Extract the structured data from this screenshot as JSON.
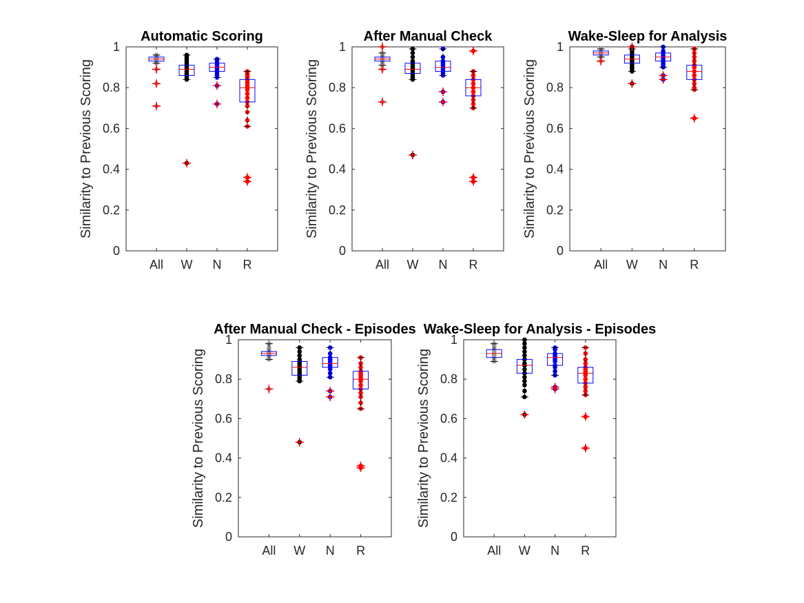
{
  "figure": {
    "ylabel": "Similarity to Previous Scoring",
    "colors": {
      "All": "#999999",
      "W": "#000000",
      "N": "#0000ff",
      "R": "#ff0000",
      "box": "#0000ff",
      "median": "#ff0000",
      "outlier": "#ff0000"
    }
  },
  "chart_data": [
    {
      "type": "box",
      "title": "Automatic Scoring",
      "ylabel": "Similarity to Previous Scoring",
      "categories": [
        "All",
        "W",
        "N",
        "R"
      ],
      "ylim": [
        0,
        1
      ],
      "yticks": [
        0,
        0.2,
        0.4,
        0.6,
        0.8,
        1
      ],
      "yticklabels": [
        "0",
        "0.2",
        "0.4",
        "0.6",
        "0.8",
        "1"
      ],
      "boxes": [
        {
          "q1": 0.93,
          "median": 0.94,
          "q3": 0.95,
          "whisker_low": 0.92,
          "whisker_high": 0.96,
          "outliers": [
            0.89,
            0.82,
            0.71
          ],
          "points": [
            0.92,
            0.93,
            0.935,
            0.94,
            0.945,
            0.95,
            0.955,
            0.96,
            0.89,
            0.82,
            0.71
          ]
        },
        {
          "q1": 0.86,
          "median": 0.89,
          "q3": 0.91,
          "whisker_low": 0.84,
          "whisker_high": 0.96,
          "outliers": [
            0.43
          ],
          "points": [
            0.84,
            0.85,
            0.86,
            0.87,
            0.88,
            0.89,
            0.9,
            0.91,
            0.92,
            0.93,
            0.94,
            0.95,
            0.96,
            0.43
          ]
        },
        {
          "q1": 0.88,
          "median": 0.9,
          "q3": 0.92,
          "whisker_low": 0.85,
          "whisker_high": 0.94,
          "outliers": [
            0.81,
            0.72
          ],
          "points": [
            0.85,
            0.86,
            0.87,
            0.88,
            0.89,
            0.9,
            0.91,
            0.92,
            0.93,
            0.94,
            0.81,
            0.72
          ]
        },
        {
          "q1": 0.73,
          "median": 0.8,
          "q3": 0.84,
          "whisker_low": 0.61,
          "whisker_high": 0.88,
          "outliers": [
            0.36,
            0.34
          ],
          "points": [
            0.61,
            0.64,
            0.68,
            0.71,
            0.73,
            0.75,
            0.77,
            0.79,
            0.8,
            0.81,
            0.82,
            0.83,
            0.84,
            0.85,
            0.86,
            0.87,
            0.88,
            0.36,
            0.34
          ]
        }
      ]
    },
    {
      "type": "box",
      "title": "After Manual Check",
      "ylabel": "Similarity to Previous Scoring",
      "categories": [
        "All",
        "W",
        "N",
        "R"
      ],
      "ylim": [
        0,
        1
      ],
      "yticks": [
        0,
        0.2,
        0.4,
        0.6,
        0.8,
        1
      ],
      "yticklabels": [
        "0",
        "0.2",
        "0.4",
        "0.6",
        "0.8",
        "1"
      ],
      "boxes": [
        {
          "q1": 0.93,
          "median": 0.94,
          "q3": 0.95,
          "whisker_low": 0.91,
          "whisker_high": 0.97,
          "outliers": [
            1.0,
            0.89,
            0.73
          ],
          "points": [
            0.91,
            0.92,
            0.93,
            0.94,
            0.95,
            0.96,
            0.97,
            1.0,
            0.89,
            0.73
          ]
        },
        {
          "q1": 0.87,
          "median": 0.89,
          "q3": 0.92,
          "whisker_low": 0.84,
          "whisker_high": 0.99,
          "outliers": [
            0.47
          ],
          "points": [
            0.84,
            0.85,
            0.86,
            0.87,
            0.88,
            0.89,
            0.9,
            0.91,
            0.92,
            0.93,
            0.95,
            0.97,
            0.99,
            0.47
          ]
        },
        {
          "q1": 0.88,
          "median": 0.9,
          "q3": 0.93,
          "whisker_low": 0.86,
          "whisker_high": 0.99,
          "outliers": [
            0.78,
            0.73
          ],
          "points": [
            0.86,
            0.87,
            0.88,
            0.89,
            0.9,
            0.91,
            0.92,
            0.93,
            0.95,
            0.99,
            0.78,
            0.73
          ]
        },
        {
          "q1": 0.76,
          "median": 0.8,
          "q3": 0.84,
          "whisker_low": 0.7,
          "whisker_high": 0.88,
          "outliers": [
            0.98,
            0.36,
            0.34
          ],
          "points": [
            0.7,
            0.72,
            0.74,
            0.76,
            0.78,
            0.8,
            0.82,
            0.84,
            0.86,
            0.88,
            0.98,
            0.36,
            0.34
          ]
        }
      ]
    },
    {
      "type": "box",
      "title": "Wake-Sleep for Analysis",
      "ylabel": "Similarity to Previous Scoring",
      "categories": [
        "All",
        "W",
        "N",
        "R"
      ],
      "ylim": [
        0,
        1
      ],
      "yticks": [
        0,
        0.2,
        0.4,
        0.6,
        0.8,
        1
      ],
      "yticklabels": [
        "0",
        "0.2",
        "0.4",
        "0.6",
        "0.8",
        "1"
      ],
      "boxes": [
        {
          "q1": 0.96,
          "median": 0.97,
          "q3": 0.98,
          "whisker_low": 0.95,
          "whisker_high": 0.99,
          "outliers": [
            0.93
          ],
          "points": [
            0.95,
            0.96,
            0.965,
            0.97,
            0.975,
            0.98,
            0.99,
            0.93
          ]
        },
        {
          "q1": 0.92,
          "median": 0.94,
          "q3": 0.96,
          "whisker_low": 0.88,
          "whisker_high": 0.99,
          "outliers": [
            0.82,
            1.0
          ],
          "points": [
            0.88,
            0.89,
            0.9,
            0.91,
            0.92,
            0.93,
            0.94,
            0.95,
            0.96,
            0.97,
            0.98,
            0.99,
            0.82,
            1.0
          ]
        },
        {
          "q1": 0.93,
          "median": 0.95,
          "q3": 0.97,
          "whisker_low": 0.9,
          "whisker_high": 1.0,
          "outliers": [
            0.86,
            0.84
          ],
          "points": [
            0.9,
            0.91,
            0.92,
            0.93,
            0.94,
            0.95,
            0.96,
            0.97,
            0.98,
            1.0,
            0.86,
            0.84
          ]
        },
        {
          "q1": 0.84,
          "median": 0.88,
          "q3": 0.91,
          "whisker_low": 0.79,
          "whisker_high": 0.99,
          "outliers": [
            0.65
          ],
          "points": [
            0.79,
            0.8,
            0.82,
            0.84,
            0.86,
            0.88,
            0.9,
            0.91,
            0.93,
            0.95,
            0.97,
            0.99,
            0.65
          ]
        }
      ]
    },
    {
      "type": "box",
      "title": "After Manual Check - Episodes",
      "ylabel": "Similarity to Previous Scoring",
      "categories": [
        "All",
        "W",
        "N",
        "R"
      ],
      "ylim": [
        0,
        1
      ],
      "yticks": [
        0,
        0.2,
        0.4,
        0.6,
        0.8,
        1
      ],
      "yticklabels": [
        "0",
        "0.2",
        "0.4",
        "0.6",
        "0.8",
        "1"
      ],
      "boxes": [
        {
          "q1": 0.92,
          "median": 0.93,
          "q3": 0.94,
          "whisker_low": 0.9,
          "whisker_high": 0.98,
          "outliers": [
            0.75
          ],
          "points": [
            0.9,
            0.91,
            0.92,
            0.93,
            0.94,
            0.95,
            0.96,
            0.98,
            0.75
          ]
        },
        {
          "q1": 0.82,
          "median": 0.86,
          "q3": 0.89,
          "whisker_low": 0.79,
          "whisker_high": 0.96,
          "outliers": [
            0.48
          ],
          "points": [
            0.79,
            0.8,
            0.81,
            0.82,
            0.83,
            0.84,
            0.85,
            0.86,
            0.87,
            0.88,
            0.89,
            0.9,
            0.92,
            0.94,
            0.96,
            0.48
          ]
        },
        {
          "q1": 0.86,
          "median": 0.88,
          "q3": 0.91,
          "whisker_low": 0.81,
          "whisker_high": 0.96,
          "outliers": [
            0.74,
            0.71
          ],
          "points": [
            0.81,
            0.83,
            0.85,
            0.86,
            0.87,
            0.88,
            0.89,
            0.9,
            0.91,
            0.93,
            0.96,
            0.74,
            0.71
          ]
        },
        {
          "q1": 0.75,
          "median": 0.8,
          "q3": 0.84,
          "whisker_low": 0.65,
          "whisker_high": 0.91,
          "outliers": [
            0.36,
            0.35
          ],
          "points": [
            0.65,
            0.68,
            0.71,
            0.73,
            0.75,
            0.77,
            0.79,
            0.8,
            0.81,
            0.82,
            0.83,
            0.84,
            0.86,
            0.88,
            0.91,
            0.36,
            0.35
          ]
        }
      ]
    },
    {
      "type": "box",
      "title": "Wake-Sleep for Analysis - Episodes",
      "ylabel": "Similarity to Previous Scoring",
      "categories": [
        "All",
        "W",
        "N",
        "R"
      ],
      "ylim": [
        0,
        1
      ],
      "yticks": [
        0,
        0.2,
        0.4,
        0.6,
        0.8,
        1
      ],
      "yticklabels": [
        "0",
        "0.2",
        "0.4",
        "0.6",
        "0.8",
        "1"
      ],
      "boxes": [
        {
          "q1": 0.91,
          "median": 0.93,
          "q3": 0.95,
          "whisker_low": 0.89,
          "whisker_high": 0.98,
          "outliers": [],
          "points": [
            0.89,
            0.9,
            0.91,
            0.92,
            0.93,
            0.94,
            0.95,
            0.96,
            0.97,
            0.98
          ]
        },
        {
          "q1": 0.83,
          "median": 0.87,
          "q3": 0.9,
          "whisker_low": 0.71,
          "whisker_high": 1.0,
          "outliers": [
            0.62
          ],
          "points": [
            0.71,
            0.74,
            0.77,
            0.79,
            0.81,
            0.83,
            0.85,
            0.87,
            0.88,
            0.9,
            0.92,
            0.94,
            0.96,
            0.98,
            1.0,
            0.62
          ]
        },
        {
          "q1": 0.87,
          "median": 0.91,
          "q3": 0.93,
          "whisker_low": 0.82,
          "whisker_high": 0.96,
          "outliers": [
            0.76,
            0.75
          ],
          "points": [
            0.82,
            0.84,
            0.86,
            0.87,
            0.89,
            0.9,
            0.91,
            0.92,
            0.93,
            0.95,
            0.96,
            0.76,
            0.75
          ]
        },
        {
          "q1": 0.78,
          "median": 0.83,
          "q3": 0.86,
          "whisker_low": 0.72,
          "whisker_high": 0.96,
          "outliers": [
            0.61,
            0.45
          ],
          "points": [
            0.72,
            0.74,
            0.76,
            0.78,
            0.8,
            0.82,
            0.83,
            0.84,
            0.85,
            0.86,
            0.88,
            0.9,
            0.93,
            0.96,
            0.61,
            0.45
          ]
        }
      ]
    }
  ]
}
